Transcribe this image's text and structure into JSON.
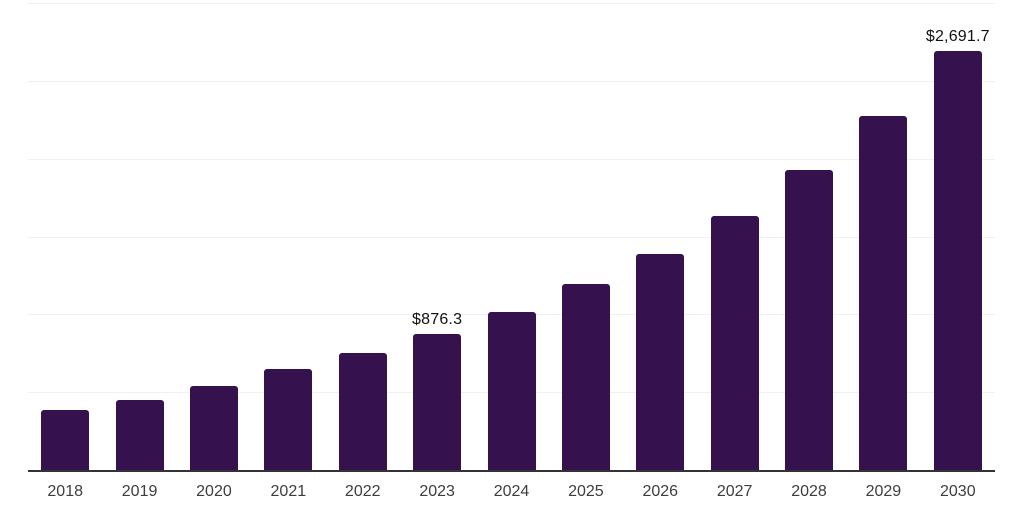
{
  "chart_data": {
    "type": "bar",
    "title": "",
    "xlabel": "",
    "ylabel": "",
    "categories": [
      "2018",
      "2019",
      "2020",
      "2021",
      "2022",
      "2023",
      "2024",
      "2025",
      "2026",
      "2027",
      "2028",
      "2029",
      "2030"
    ],
    "values": [
      385,
      448,
      538,
      647,
      750,
      876.3,
      1018,
      1198,
      1390,
      1633,
      1928,
      2273,
      2691.7
    ],
    "data_labels": [
      "",
      "",
      "",
      "",
      "",
      "$876.3",
      "",
      "",
      "",
      "",
      "",
      "",
      "$2,691.7"
    ],
    "ylim": [
      0,
      3000
    ],
    "gridline_step": 500,
    "grid": "horizontal",
    "legend": "none",
    "colors": {
      "bar": "#35124e",
      "axis_line": "#333333",
      "gridline": "#f0f0f2",
      "tick_label": "#3d3d3d",
      "data_label": "#111111",
      "background": "#ffffff"
    }
  }
}
